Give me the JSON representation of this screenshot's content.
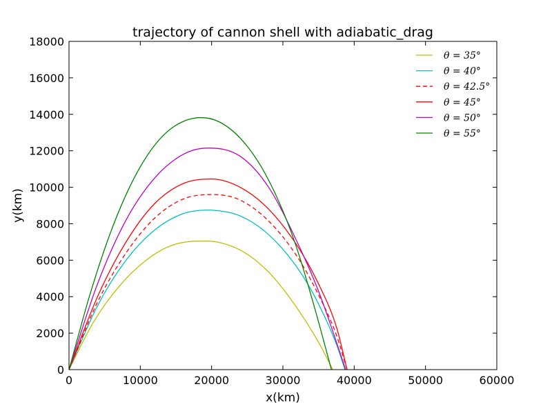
{
  "chart_data": {
    "type": "line",
    "title": "trajectory of cannon shell with adiabatic_drag",
    "xlabel": "x(km)",
    "ylabel": "y(km)",
    "xlim": [
      0,
      60000
    ],
    "ylim": [
      0,
      18000
    ],
    "xticks": [
      "0",
      "10000",
      "20000",
      "30000",
      "40000",
      "50000",
      "60000"
    ],
    "yticks": [
      "0",
      "2000",
      "4000",
      "6000",
      "8000",
      "10000",
      "12000",
      "14000",
      "16000",
      "18000"
    ],
    "grid": false,
    "legend_position": "top-right",
    "series": [
      {
        "name": "θ = 35°",
        "color": "#bfbf00",
        "dash": "solid",
        "x": [
          0,
          3500,
          7000,
          10500,
          14000,
          17500,
          19000,
          21000,
          24500,
          28000,
          31500,
          35000,
          37000
        ],
        "y": [
          0,
          2650,
          4550,
          5900,
          6750,
          7040,
          7050,
          6980,
          6450,
          5350,
          3650,
          1500,
          0
        ]
      },
      {
        "name": "θ = 40°",
        "color": "#00bfbf",
        "dash": "solid",
        "x": [
          0,
          4000,
          8000,
          12000,
          16000,
          19500,
          20000,
          24000,
          28000,
          32000,
          35000,
          37500,
          38700
        ],
        "y": [
          0,
          3500,
          6000,
          7650,
          8550,
          8750,
          8745,
          8430,
          7400,
          5600,
          3600,
          1400,
          0
        ]
      },
      {
        "name": "θ = 42.5°",
        "color": "#ff0000",
        "dash": "dashed",
        "x": [
          0,
          4000,
          8000,
          12000,
          16000,
          20000,
          21000,
          24000,
          28000,
          32000,
          35000,
          37500,
          39000
        ],
        "y": [
          0,
          3700,
          6400,
          8300,
          9350,
          9600,
          9590,
          9300,
          8150,
          6200,
          4100,
          1900,
          0
        ]
      },
      {
        "name": "θ = 45°",
        "color": "#ff0000",
        "dash": "solid",
        "x": [
          0,
          4000,
          8000,
          12000,
          16000,
          20000,
          24000,
          28000,
          32000,
          35000,
          37500,
          39000
        ],
        "y": [
          0,
          4000,
          7000,
          9100,
          10200,
          10450,
          10000,
          8800,
          6800,
          4700,
          2350,
          0
        ]
      },
      {
        "name": "θ = 50°",
        "color": "#bf00bf",
        "dash": "solid",
        "x": [
          0,
          4000,
          8000,
          12000,
          16000,
          19500,
          24000,
          28000,
          32000,
          35000,
          37000,
          38800
        ],
        "y": [
          0,
          4700,
          8200,
          10500,
          11800,
          12150,
          11700,
          10000,
          7000,
          4300,
          2100,
          0
        ]
      },
      {
        "name": "θ = 55°",
        "color": "#008000",
        "dash": "solid",
        "x": [
          0,
          3000,
          6000,
          9000,
          12000,
          15000,
          18500,
          21000,
          24000,
          27000,
          30000,
          32000,
          34000,
          35500,
          36800
        ],
        "y": [
          0,
          4200,
          7700,
          10400,
          12300,
          13400,
          13820,
          13600,
          12700,
          11100,
          8700,
          6600,
          4000,
          1900,
          0
        ]
      }
    ]
  }
}
